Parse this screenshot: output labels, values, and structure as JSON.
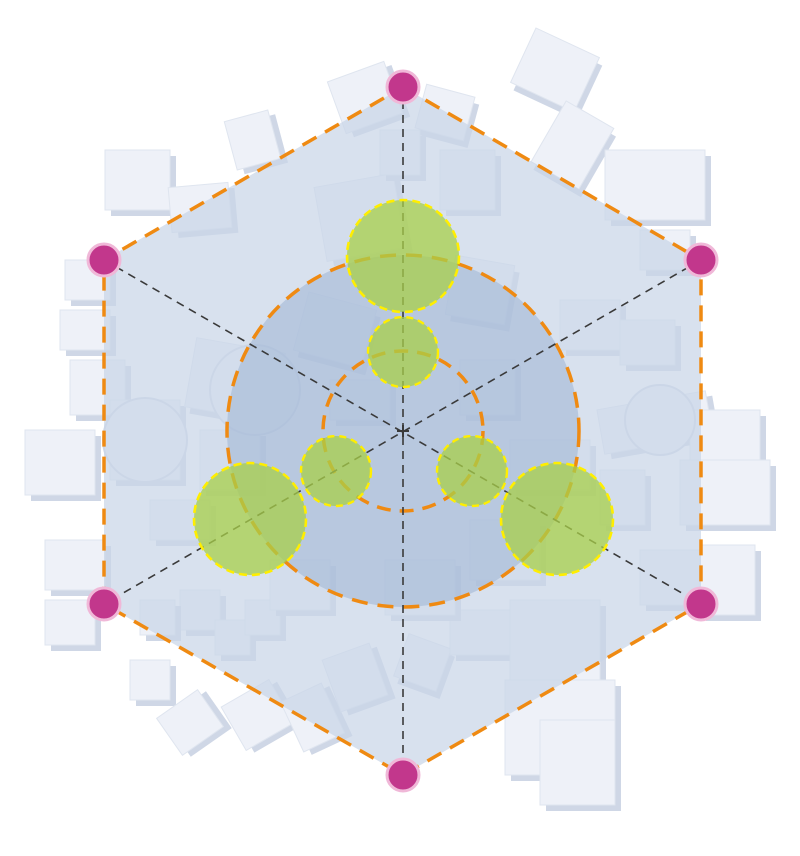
{
  "diagram": {
    "description_visible_text": "",
    "colors": {
      "hexagon_fill": "#c9d5e7",
      "hexagon_stroke": "#ef8a12",
      "vertex_fill": "#c2378c",
      "vertex_ring": "#f0b8d8",
      "spoke_stroke": "#3a3a3a",
      "green_fill": "#a8cf4a",
      "green_stroke": "#ffee00",
      "big_circle_fill": "#9fb4d3",
      "building_fill": "#eef1f8",
      "building_shade": "#cfd7e6"
    },
    "vertices": [
      {
        "id": "top"
      },
      {
        "id": "upper-right"
      },
      {
        "id": "lower-right"
      },
      {
        "id": "bottom"
      },
      {
        "id": "lower-left"
      },
      {
        "id": "upper-left"
      }
    ],
    "circles": {
      "outer_dashed": {
        "color": "#ef8a12"
      },
      "inner_dashed": {
        "color": "#ef8a12"
      },
      "green_large_count": 3,
      "green_small_count": 3
    }
  }
}
